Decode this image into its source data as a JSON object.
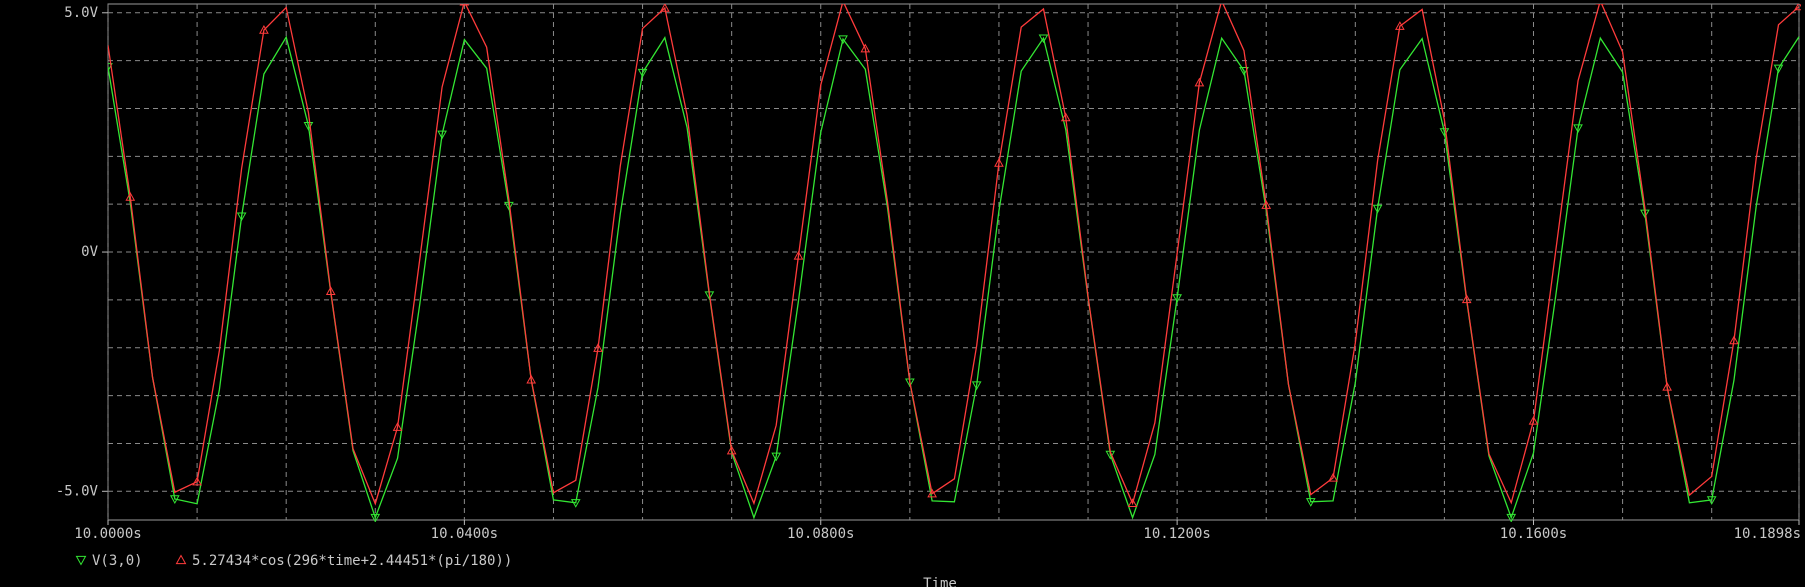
{
  "chart_data": {
    "type": "line",
    "xlabel": "Time",
    "x": [
      10,
      10.0025,
      10.005,
      10.0075,
      10.01,
      10.0125,
      10.015,
      10.0175,
      10.02,
      10.0225,
      10.025,
      10.0275,
      10.03,
      10.0325,
      10.035,
      10.0375,
      10.04,
      10.0425,
      10.045,
      10.0475,
      10.05,
      10.0525,
      10.055,
      10.0575,
      10.06,
      10.0625,
      10.065,
      10.0675,
      10.07,
      10.0725,
      10.075,
      10.0775,
      10.08,
      10.0825,
      10.085,
      10.0875,
      10.09,
      10.0925,
      10.095,
      10.0975,
      10.1,
      10.1025,
      10.105,
      10.1075,
      10.11,
      10.1125,
      10.115,
      10.1175,
      10.12,
      10.1225,
      10.125,
      10.1275,
      10.13,
      10.1325,
      10.135,
      10.1375,
      10.14,
      10.1425,
      10.145,
      10.1475,
      10.15,
      10.1525,
      10.155,
      10.1575,
      10.16,
      10.1625,
      10.165,
      10.1675,
      10.17,
      10.1725,
      10.175,
      10.1775,
      10.18,
      10.1825,
      10.185,
      10.1875,
      10.1898
    ],
    "series": [
      {
        "name": "V(3,0)",
        "color": "#33e633",
        "marker": "down",
        "values": [
          3.87,
          1.03,
          -2.62,
          -5.16,
          -5.26,
          -2.88,
          0.75,
          3.72,
          4.49,
          2.64,
          -0.84,
          -4.15,
          -5.55,
          -4.31,
          -1.08,
          2.46,
          4.44,
          3.84,
          0.97,
          -2.67,
          -5.18,
          -5.24,
          -2.83,
          0.8,
          3.75,
          4.48,
          2.6,
          -0.9,
          -4.19,
          -5.55,
          -4.27,
          -1.02,
          2.5,
          4.45,
          3.82,
          0.92,
          -2.72,
          -5.2,
          -5.22,
          -2.78,
          0.86,
          3.78,
          4.47,
          2.56,
          -0.95,
          -4.23,
          -5.55,
          -4.23,
          -0.96,
          2.55,
          4.47,
          3.79,
          0.87,
          -2.77,
          -5.22,
          -5.2,
          -2.73,
          0.91,
          3.81,
          4.46,
          2.51,
          -1.01,
          -4.26,
          -5.55,
          -4.2,
          -0.91,
          2.59,
          4.47,
          3.76,
          0.81,
          -2.82,
          -5.24,
          -5.18,
          -2.68,
          0.96,
          3.84,
          4.5
        ]
      },
      {
        "name": "5.27434*cos(296*time+2.44451*(pi/180))",
        "color": "#ff3b3b",
        "marker": "up",
        "values": [
          4.32,
          1.15,
          -2.62,
          -5.02,
          -4.8,
          -2.06,
          1.75,
          4.64,
          5.11,
          2.91,
          -0.82,
          -4.11,
          -5.26,
          -3.66,
          -0.14,
          3.45,
          5.23,
          4.28,
          1.09,
          -2.67,
          -5.03,
          -4.77,
          -2.01,
          1.8,
          4.67,
          5.1,
          2.86,
          -0.87,
          -4.15,
          -5.25,
          -3.62,
          -0.08,
          3.49,
          5.24,
          4.25,
          1.04,
          -2.72,
          -5.05,
          -4.74,
          -1.96,
          1.86,
          4.7,
          5.08,
          2.81,
          -0.93,
          -4.18,
          -5.25,
          -3.57,
          -0.03,
          3.54,
          5.25,
          4.21,
          0.98,
          -2.77,
          -5.07,
          -4.72,
          -1.9,
          1.91,
          4.72,
          5.07,
          2.76,
          -0.99,
          -4.22,
          -5.24,
          -3.53,
          0.03,
          3.58,
          5.25,
          4.18,
          0.92,
          -2.82,
          -5.08,
          -4.69,
          -1.85,
          1.96,
          4.75,
          5.13
        ]
      }
    ],
    "xlim": [
      10,
      10.1898
    ],
    "xticks": [
      {
        "value": 10,
        "label": "10.0000s"
      },
      {
        "value": 10.04,
        "label": "10.0400s"
      },
      {
        "value": 10.08,
        "label": "10.0800s"
      },
      {
        "value": 10.12,
        "label": "10.1200s"
      },
      {
        "value": 10.16,
        "label": "10.1600s"
      },
      {
        "value": 10.1898,
        "label": "10.1898s"
      }
    ],
    "minor_xticks": [
      10.01,
      10.02,
      10.03,
      10.05,
      10.06,
      10.07,
      10.09,
      10.1,
      10.11,
      10.13,
      10.14,
      10.15,
      10.17,
      10.18
    ],
    "ylim": [
      -5.6,
      5.1
    ],
    "yticks": [
      {
        "value": -5,
        "label": "-5.0V"
      },
      {
        "value": 0,
        "label": "0V"
      },
      {
        "value": 5,
        "label": "5.0V"
      }
    ],
    "minor_yticks": [
      -4,
      -3,
      -2,
      -1,
      1,
      2,
      3,
      4
    ],
    "grid": true
  }
}
